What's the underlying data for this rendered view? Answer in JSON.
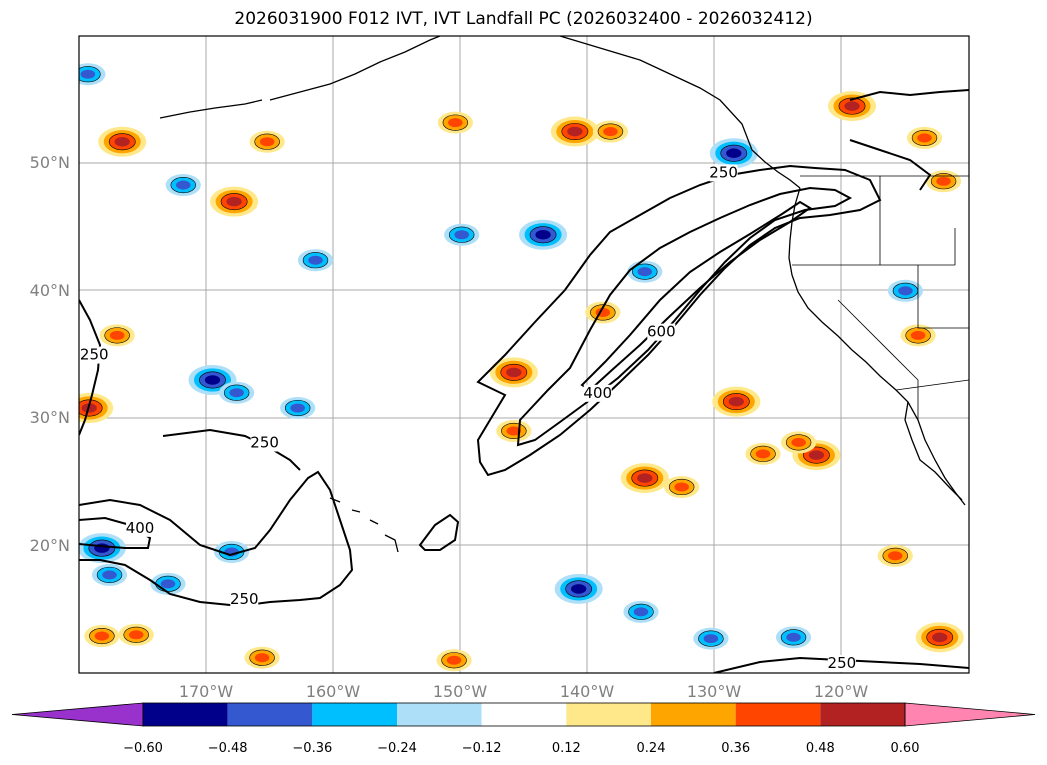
{
  "title": "2026031900 F012 IVT, IVT Landfall PC (2026032400 - 2026032412)",
  "lat_labels": [
    "50°N",
    "40°N",
    "30°N",
    "20°N"
  ],
  "lon_labels": [
    "170°W",
    "160°W",
    "150°W",
    "140°W",
    "130°W",
    "120°W"
  ],
  "map_extent": {
    "lon": [
      -180,
      -110
    ],
    "lat": [
      10,
      60
    ]
  },
  "colorbar": {
    "ticks": [
      "−0.60",
      "−0.48",
      "−0.36",
      "−0.24",
      "−0.12",
      "0.12",
      "0.24",
      "0.36",
      "0.48",
      "0.60"
    ],
    "colors": [
      "#9932CC",
      "#00008B",
      "#3358D0",
      "#00BFFF",
      "#ADE0F8",
      "#FFFFFF",
      "#FFE88A",
      "#FFA500",
      "#FF4500",
      "#B22222",
      "#FF85B0"
    ]
  },
  "contour_levels": [
    "250",
    "400",
    "600"
  ],
  "contour_labels": [
    {
      "text": "250",
      "lon": -129.3,
      "lat": 48.9
    },
    {
      "text": "250",
      "lon": -178.8,
      "lat": 34.6
    },
    {
      "text": "250",
      "lon": -165.4,
      "lat": 27.7
    },
    {
      "text": "400",
      "lon": -175.2,
      "lat": 21.0
    },
    {
      "text": "250",
      "lon": -167.0,
      "lat": 15.4
    },
    {
      "text": "600",
      "lon": -134.2,
      "lat": 36.4
    },
    {
      "text": "400",
      "lon": -139.2,
      "lat": 31.6
    },
    {
      "text": "250",
      "lon": -120.0,
      "lat": 10.4
    }
  ],
  "blobs": [
    {
      "lon": -176.6,
      "lat": 51.7,
      "v": 0.48
    },
    {
      "lon": -167.8,
      "lat": 47.0,
      "v": 0.48
    },
    {
      "lon": -165.2,
      "lat": 51.7,
      "v": 0.36
    },
    {
      "lon": -150.4,
      "lat": 53.2,
      "v": 0.36
    },
    {
      "lon": -141.0,
      "lat": 52.5,
      "v": 0.48
    },
    {
      "lon": -119.2,
      "lat": 54.5,
      "v": 0.48
    },
    {
      "lon": -113.5,
      "lat": 52.0,
      "v": 0.36
    },
    {
      "lon": -112.0,
      "lat": 48.6,
      "v": 0.36
    },
    {
      "lon": -179.2,
      "lat": 30.8,
      "v": 0.48
    },
    {
      "lon": -177.0,
      "lat": 36.5,
      "v": 0.36
    },
    {
      "lon": -145.8,
      "lat": 33.6,
      "v": 0.48
    },
    {
      "lon": -145.8,
      "lat": 29.0,
      "v": 0.36
    },
    {
      "lon": -138.8,
      "lat": 38.3,
      "v": 0.36
    },
    {
      "lon": -128.3,
      "lat": 31.3,
      "v": 0.48
    },
    {
      "lon": -135.5,
      "lat": 25.3,
      "v": 0.48
    },
    {
      "lon": -132.6,
      "lat": 24.6,
      "v": 0.36
    },
    {
      "lon": -126.2,
      "lat": 27.2,
      "v": 0.36
    },
    {
      "lon": -122.0,
      "lat": 27.1,
      "v": 0.48
    },
    {
      "lon": -123.4,
      "lat": 28.1,
      "v": 0.36
    },
    {
      "lon": -115.8,
      "lat": 19.2,
      "v": 0.36
    },
    {
      "lon": -178.2,
      "lat": 12.9,
      "v": 0.36
    },
    {
      "lon": -175.5,
      "lat": 13.0,
      "v": 0.36
    },
    {
      "lon": -165.6,
      "lat": 11.2,
      "v": 0.36
    },
    {
      "lon": -150.5,
      "lat": 11.0,
      "v": 0.36
    },
    {
      "lon": -112.3,
      "lat": 12.8,
      "v": 0.48
    },
    {
      "lon": -114.0,
      "lat": 36.5,
      "v": 0.36
    },
    {
      "lon": -138.2,
      "lat": 52.5,
      "v": 0.36
    },
    {
      "lon": -169.5,
      "lat": 33.0,
      "v": -0.48
    },
    {
      "lon": -167.6,
      "lat": 32.0,
      "v": -0.36
    },
    {
      "lon": -162.8,
      "lat": 30.8,
      "v": -0.36
    },
    {
      "lon": -178.2,
      "lat": 19.8,
      "v": -0.48
    },
    {
      "lon": -177.6,
      "lat": 17.7,
      "v": -0.36
    },
    {
      "lon": -173.0,
      "lat": 17.0,
      "v": -0.36
    },
    {
      "lon": -168.0,
      "lat": 19.5,
      "v": -0.36
    },
    {
      "lon": -161.4,
      "lat": 42.4,
      "v": -0.36
    },
    {
      "lon": -143.5,
      "lat": 44.4,
      "v": -0.48
    },
    {
      "lon": -149.9,
      "lat": 44.4,
      "v": -0.36
    },
    {
      "lon": -140.7,
      "lat": 16.6,
      "v": -0.48
    },
    {
      "lon": -128.5,
      "lat": 50.8,
      "v": -0.48
    },
    {
      "lon": -115.0,
      "lat": 40.0,
      "v": -0.36
    },
    {
      "lon": -179.3,
      "lat": 57.0,
      "v": -0.36
    },
    {
      "lon": -171.8,
      "lat": 48.3,
      "v": -0.36
    },
    {
      "lon": -135.5,
      "lat": 41.5,
      "v": -0.36
    },
    {
      "lon": -130.3,
      "lat": 12.7,
      "v": -0.36
    },
    {
      "lon": -123.8,
      "lat": 12.8,
      "v": -0.36
    },
    {
      "lon": -135.8,
      "lat": 14.8,
      "v": -0.36
    }
  ]
}
